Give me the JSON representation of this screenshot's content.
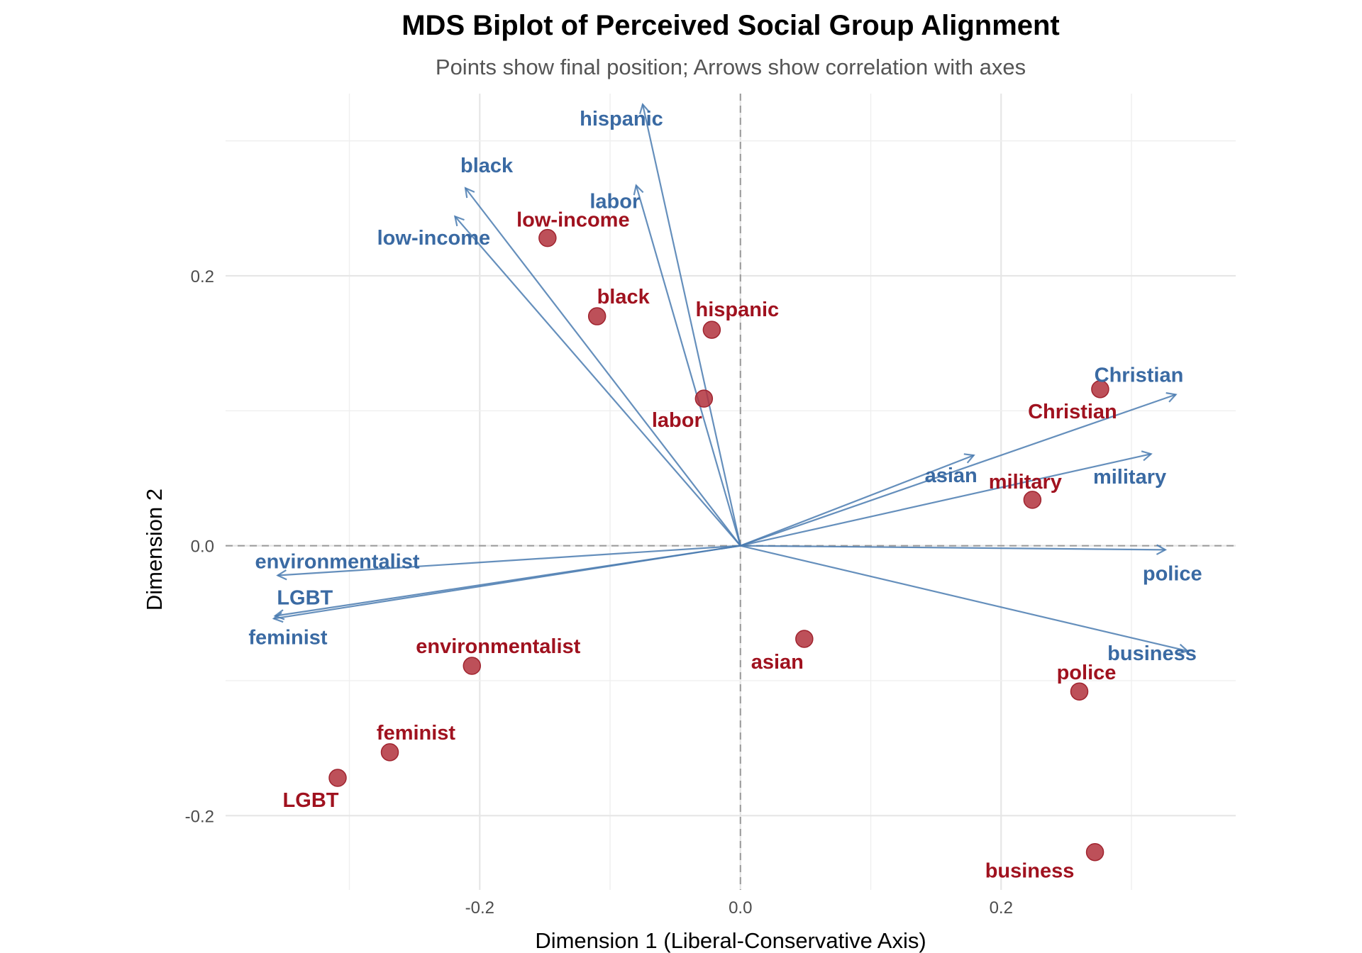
{
  "chart_data": {
    "type": "scatter",
    "title": "MDS Biplot of Perceived Social Group Alignment",
    "subtitle": "Points show final position; Arrows show correlation with axes",
    "xlabel": "Dimension 1 (Liberal-Conservative Axis)",
    "ylabel": "Dimension 2",
    "xlim": [
      -0.395,
      0.38
    ],
    "ylim": [
      -0.255,
      0.335
    ],
    "x_ticks": [
      -0.2,
      0.0,
      0.2
    ],
    "x_tick_labels": [
      "-0.2",
      "0.0",
      "0.2"
    ],
    "y_ticks": [
      -0.2,
      0.0,
      0.2
    ],
    "y_tick_labels": [
      "-0.2",
      "0.0",
      "0.2"
    ],
    "grid": true,
    "reference_lines": {
      "x": 0,
      "y": 0,
      "style": "dashed"
    },
    "colors": {
      "points": "#b2313c",
      "point_labels": "#a0121f",
      "arrows": "#4a7bb0",
      "arrow_labels": "#3a6aa3"
    },
    "points": [
      {
        "name": "low-income",
        "x": -0.148,
        "y": 0.228
      },
      {
        "name": "black",
        "x": -0.11,
        "y": 0.17
      },
      {
        "name": "hispanic",
        "x": -0.022,
        "y": 0.16
      },
      {
        "name": "labor",
        "x": -0.028,
        "y": 0.109
      },
      {
        "name": "Christian",
        "x": 0.276,
        "y": 0.116
      },
      {
        "name": "military",
        "x": 0.224,
        "y": 0.034
      },
      {
        "name": "asian",
        "x": 0.049,
        "y": -0.069
      },
      {
        "name": "police",
        "x": 0.26,
        "y": -0.108
      },
      {
        "name": "business",
        "x": 0.272,
        "y": -0.227
      },
      {
        "name": "environmentalist",
        "x": -0.206,
        "y": -0.089
      },
      {
        "name": "feminist",
        "x": -0.269,
        "y": -0.153
      },
      {
        "name": "LGBT",
        "x": -0.309,
        "y": -0.172
      }
    ],
    "vectors": [
      {
        "name": "hispanic",
        "x": -0.075,
        "y": 0.327
      },
      {
        "name": "black",
        "x": -0.211,
        "y": 0.265
      },
      {
        "name": "labor",
        "x": -0.08,
        "y": 0.267
      },
      {
        "name": "low-income",
        "x": -0.219,
        "y": 0.244
      },
      {
        "name": "Christian",
        "x": 0.334,
        "y": 0.112
      },
      {
        "name": "asian",
        "x": 0.179,
        "y": 0.067
      },
      {
        "name": "military",
        "x": 0.315,
        "y": 0.068
      },
      {
        "name": "police",
        "x": 0.326,
        "y": -0.003
      },
      {
        "name": "business",
        "x": 0.343,
        "y": -0.078
      },
      {
        "name": "environmentalist",
        "x": -0.355,
        "y": -0.022
      },
      {
        "name": "LGBT",
        "x": -0.357,
        "y": -0.052
      },
      {
        "name": "feminist",
        "x": -0.358,
        "y": -0.054
      }
    ]
  }
}
